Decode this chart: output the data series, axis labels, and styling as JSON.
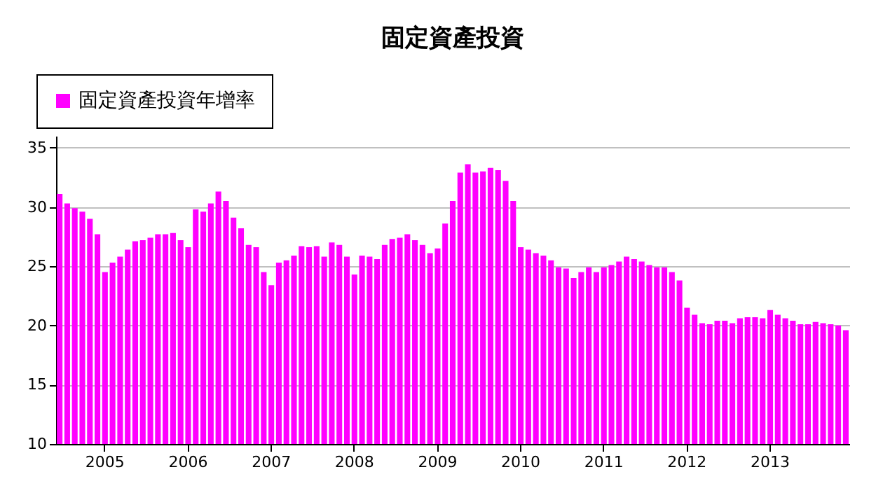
{
  "chart_data": {
    "type": "bar",
    "title": "固定資產投資",
    "categories": [
      null,
      null,
      null,
      null,
      null,
      null,
      "2005",
      null,
      null,
      null,
      null,
      null,
      null,
      null,
      null,
      null,
      null,
      "2006",
      null,
      null,
      null,
      null,
      null,
      null,
      null,
      null,
      null,
      null,
      "2007",
      null,
      null,
      null,
      null,
      null,
      null,
      null,
      null,
      null,
      null,
      "2008",
      null,
      null,
      null,
      null,
      null,
      null,
      null,
      null,
      null,
      null,
      "2009",
      null,
      null,
      null,
      null,
      null,
      null,
      null,
      null,
      null,
      null,
      "2010",
      null,
      null,
      null,
      null,
      null,
      null,
      null,
      null,
      null,
      null,
      "2011",
      null,
      null,
      null,
      null,
      null,
      null,
      null,
      null,
      null,
      null,
      "2012",
      null,
      null,
      null,
      null,
      null,
      null,
      null,
      null,
      null,
      null,
      "2013",
      null,
      null,
      null,
      null,
      null,
      null,
      null,
      null,
      null,
      null
    ],
    "series": [
      {
        "name": "固定資產投資年增率",
        "color": "#ff00ff",
        "values": [
          31.1,
          30.3,
          29.9,
          29.6,
          29.0,
          27.7,
          24.5,
          25.3,
          25.8,
          26.4,
          27.1,
          27.2,
          27.4,
          27.7,
          27.7,
          27.8,
          27.2,
          26.6,
          29.8,
          29.6,
          30.3,
          31.3,
          30.5,
          29.1,
          28.2,
          26.8,
          26.6,
          24.5,
          23.4,
          25.3,
          25.5,
          25.9,
          26.7,
          26.6,
          26.7,
          25.8,
          27.0,
          26.8,
          25.8,
          24.3,
          25.9,
          25.8,
          25.6,
          26.8,
          27.3,
          27.4,
          27.7,
          27.2,
          26.8,
          26.1,
          26.5,
          28.6,
          30.5,
          32.9,
          33.6,
          32.9,
          33.0,
          33.3,
          33.1,
          32.2,
          30.5,
          26.6,
          26.4,
          26.1,
          25.9,
          25.5,
          24.9,
          24.8,
          24.0,
          24.5,
          24.9,
          24.5,
          24.9,
          25.1,
          25.4,
          25.8,
          25.6,
          25.4,
          25.1,
          24.9,
          24.9,
          24.5,
          23.8,
          21.5,
          20.9,
          20.2,
          20.1,
          20.4,
          20.4,
          20.2,
          20.6,
          20.7,
          20.7,
          20.6,
          21.3,
          20.9,
          20.6,
          20.4,
          20.1,
          20.1,
          20.3,
          20.2,
          20.1,
          20.0,
          19.6
        ]
      }
    ],
    "ylim": [
      10,
      36
    ],
    "yticks": [
      10,
      15,
      20,
      25,
      30,
      35
    ],
    "grid": "y",
    "legend": "top left"
  }
}
